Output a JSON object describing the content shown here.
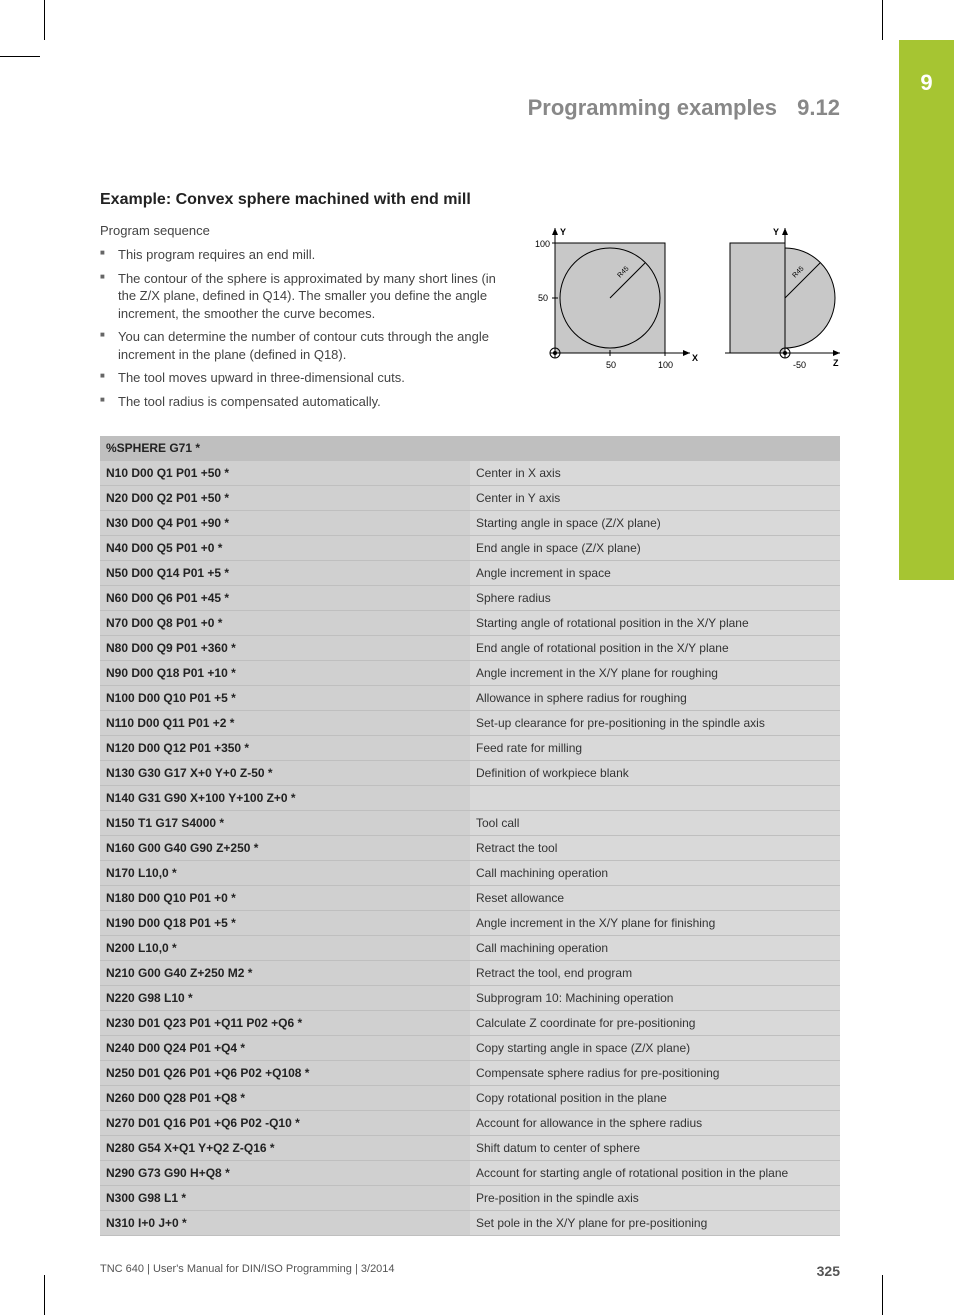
{
  "chapter_number": "9",
  "header": {
    "title": "Programming examples",
    "section": "9.12"
  },
  "example_title": "Example: Convex sphere machined with end mill",
  "sequence_label": "Program sequence",
  "bullets": [
    "This program requires an end mill.",
    "The contour of the sphere is approximated by many short lines (in the Z/X plane, defined in Q14). The smaller you define the angle increment, the smoother the curve becomes.",
    "You can determine the number of contour cuts through the angle increment in the plane (defined in Q18).",
    "The tool moves upward in three-dimensional cuts.",
    "The tool radius is compensated automatically."
  ],
  "diagram": {
    "axis_labels": {
      "y1": "Y",
      "y2": "Y",
      "x": "X",
      "z": "Z"
    },
    "ticks": {
      "y100": "100",
      "y50": "50",
      "x50": "50",
      "x100": "100",
      "zneg50": "-50"
    },
    "radius_label": "R45",
    "colors": {
      "fill": "#c8c8c8",
      "stroke": "#000000",
      "bg": "#ffffff"
    }
  },
  "table": {
    "rows": [
      {
        "code": "%SPHERE G71 *",
        "desc": "",
        "header": true
      },
      {
        "code": "N10 D00 Q1 P01 +50 *",
        "desc": "Center in X axis"
      },
      {
        "code": "N20 D00 Q2 P01 +50 *",
        "desc": "Center in Y axis"
      },
      {
        "code": "N30 D00 Q4 P01 +90 *",
        "desc": "Starting angle in space (Z/X plane)"
      },
      {
        "code": "N40 D00 Q5 P01 +0 *",
        "desc": "End angle in space (Z/X plane)"
      },
      {
        "code": "N50 D00 Q14 P01 +5 *",
        "desc": "Angle increment in space"
      },
      {
        "code": "N60 D00 Q6 P01 +45 *",
        "desc": "Sphere radius"
      },
      {
        "code": "N70 D00 Q8 P01 +0 *",
        "desc": "Starting angle of rotational position in the X/Y plane"
      },
      {
        "code": "N80 D00 Q9 P01 +360 *",
        "desc": "End angle of rotational position in the X/Y plane"
      },
      {
        "code": "N90 D00 Q18 P01 +10 *",
        "desc": "Angle increment in the X/Y plane for roughing"
      },
      {
        "code": "N100 D00 Q10 P01 +5 *",
        "desc": "Allowance in sphere radius for roughing"
      },
      {
        "code": "N110 D00 Q11 P01 +2 *",
        "desc": "Set-up clearance for pre-positioning in the spindle axis"
      },
      {
        "code": "N120 D00 Q12 P01 +350 *",
        "desc": "Feed rate for milling"
      },
      {
        "code": "N130 G30 G17 X+0 Y+0 Z-50 *",
        "desc": "Definition of workpiece blank"
      },
      {
        "code": "N140 G31 G90 X+100 Y+100 Z+0 *",
        "desc": ""
      },
      {
        "code": "N150 T1 G17 S4000 *",
        "desc": "Tool call"
      },
      {
        "code": "N160 G00 G40 G90 Z+250 *",
        "desc": "Retract the tool"
      },
      {
        "code": "N170 L10,0 *",
        "desc": "Call machining operation"
      },
      {
        "code": "N180 D00 Q10 P01 +0 *",
        "desc": "Reset allowance"
      },
      {
        "code": "N190 D00 Q18 P01 +5 *",
        "desc": "Angle increment in the X/Y plane for finishing"
      },
      {
        "code": "N200 L10,0 *",
        "desc": "Call machining operation"
      },
      {
        "code": "N210 G00 G40 Z+250 M2 *",
        "desc": "Retract the tool, end program"
      },
      {
        "code": "N220 G98 L10 *",
        "desc": "Subprogram 10: Machining operation"
      },
      {
        "code": "N230 D01 Q23 P01 +Q11 P02 +Q6 *",
        "desc": "Calculate Z coordinate for pre-positioning"
      },
      {
        "code": "N240 D00 Q24 P01 +Q4 *",
        "desc": "Copy starting angle in space (Z/X plane)"
      },
      {
        "code": "N250 D01 Q26 P01 +Q6 P02 +Q108 *",
        "desc": "Compensate sphere radius for pre-positioning"
      },
      {
        "code": "N260 D00 Q28 P01 +Q8 *",
        "desc": "Copy rotational position in the plane"
      },
      {
        "code": "N270 D01 Q16 P01 +Q6 P02 -Q10 *",
        "desc": "Account for allowance in the sphere radius"
      },
      {
        "code": "N280 G54 X+Q1 Y+Q2 Z-Q16 *",
        "desc": "Shift datum to center of sphere"
      },
      {
        "code": "N290 G73 G90 H+Q8 *",
        "desc": "Account for starting angle of rotational position in the plane"
      },
      {
        "code": "N300 G98 L1 *",
        "desc": "Pre-position in the spindle axis"
      },
      {
        "code": "N310 I+0 J+0 *",
        "desc": "Set pole in the X/Y plane for pre-positioning"
      }
    ]
  },
  "footer": {
    "text": "TNC 640 | User's Manual for DIN/ISO Programming | 3/2014",
    "page": "325"
  }
}
